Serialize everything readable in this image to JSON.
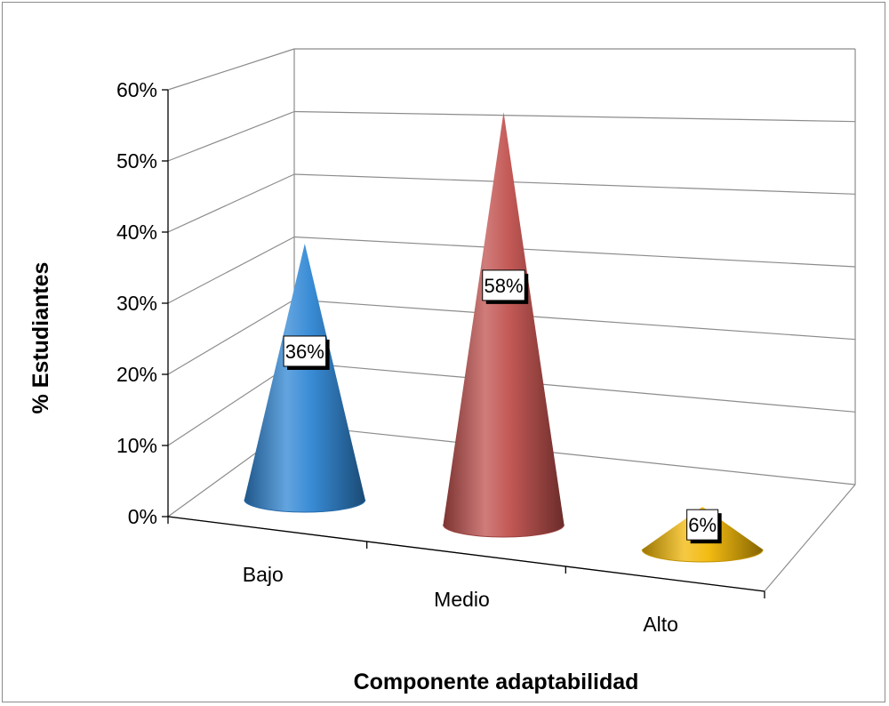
{
  "chart_data": {
    "type": "bar",
    "style": "3d-cone",
    "categories": [
      "Bajo",
      "Medio",
      "Alto"
    ],
    "values": [
      36,
      58,
      6
    ],
    "data_labels": [
      "36%",
      "58%",
      "6%"
    ],
    "colors": [
      "#2f86d4",
      "#c0504d",
      "#f2b705"
    ],
    "xlabel": "Componente adaptabilidad",
    "ylabel": "% Estudiantes",
    "ylim": [
      0,
      60
    ],
    "yticks": [
      0,
      10,
      20,
      30,
      40,
      50,
      60
    ],
    "ytick_labels": [
      "0%",
      "10%",
      "20%",
      "30%",
      "40%",
      "50%",
      "60%"
    ],
    "grid": true,
    "legend": "none"
  }
}
